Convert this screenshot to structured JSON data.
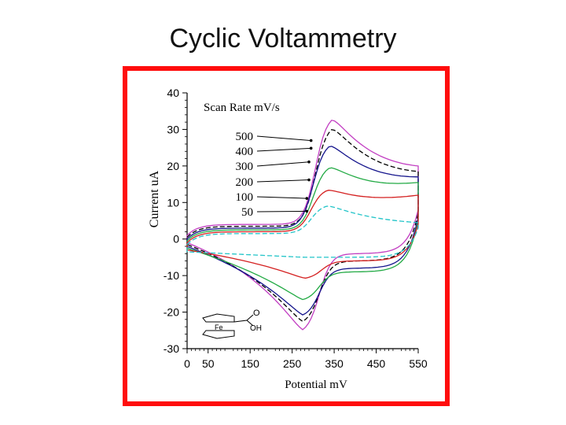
{
  "slide": {
    "title": "Cyclic Voltammetry"
  },
  "colors": {
    "frame": "#ff0d0d",
    "axis": "#000000"
  },
  "chart_data": {
    "type": "line",
    "title": "",
    "annotation_heading": "Scan Rate mV/s",
    "xlabel": "Potential mV",
    "ylabel": "Current uA",
    "xlim": [
      0,
      550
    ],
    "ylim": [
      -30,
      40
    ],
    "x_ticks": [
      "0",
      "50",
      "150",
      "250",
      "350",
      "450",
      "550"
    ],
    "y_ticks": [
      "40",
      "30",
      "20",
      "10",
      "0",
      "-10",
      "-20",
      "-30"
    ],
    "grid": false,
    "molecule_labels": {
      "metal": "Fe",
      "carbonyl": "O",
      "hydroxyl": "OH"
    },
    "series": [
      {
        "name": "500",
        "color": "#c23ec2",
        "dash": "",
        "upper_start": 1.0,
        "upper_plateau": 4.0,
        "upper_peak_x": 345,
        "upper_peak_y": 34.3,
        "upper_end": 20.0,
        "lower_start": -1.0,
        "lower_plateau": -4.0,
        "lower_peak_x": 275,
        "lower_peak_y": -26.0,
        "lower_end": 8.0
      },
      {
        "name": "400",
        "color": "#000000",
        "dash": "6,3",
        "upper_start": 0.5,
        "upper_plateau": 3.5,
        "upper_peak_x": 345,
        "upper_peak_y": 31.6,
        "upper_end": 18.5,
        "lower_start": -1.5,
        "lower_plateau": -6.0,
        "lower_peak_x": 275,
        "lower_peak_y": -23.5,
        "lower_end": 7.0
      },
      {
        "name": "300",
        "color": "#14148c",
        "dash": "",
        "upper_start": 0.0,
        "upper_plateau": 3.0,
        "upper_peak_x": 340,
        "upper_peak_y": 26.8,
        "upper_end": 17.0,
        "lower_start": -2.0,
        "lower_plateau": -8.0,
        "lower_peak_x": 275,
        "lower_peak_y": -21.5,
        "lower_end": 6.0
      },
      {
        "name": "200",
        "color": "#22aa44",
        "dash": "",
        "upper_start": -0.5,
        "upper_plateau": 2.5,
        "upper_peak_x": 340,
        "upper_peak_y": 20.5,
        "upper_end": 15.5,
        "lower_start": -2.5,
        "lower_plateau": -9.0,
        "lower_peak_x": 275,
        "lower_peak_y": -17.0,
        "lower_end": 5.0
      },
      {
        "name": "100",
        "color": "#d42020",
        "dash": "",
        "upper_start": -1.0,
        "upper_plateau": 2.0,
        "upper_peak_x": 335,
        "upper_peak_y": 14.0,
        "upper_end": 12.0,
        "lower_start": -3.0,
        "lower_plateau": -6.0,
        "lower_peak_x": 280,
        "lower_peak_y": -11.0,
        "lower_end": 4.0
      },
      {
        "name": "50",
        "color": "#22c4c8",
        "dash": "6,3",
        "upper_start": -1.5,
        "upper_plateau": 1.5,
        "upper_peak_x": 335,
        "upper_peak_y": 9.5,
        "upper_end": 4.5,
        "lower_start": -3.5,
        "lower_plateau": -5.0,
        "lower_peak_x": 280,
        "lower_peak_y": -5.0,
        "lower_end": 3.0
      }
    ]
  }
}
